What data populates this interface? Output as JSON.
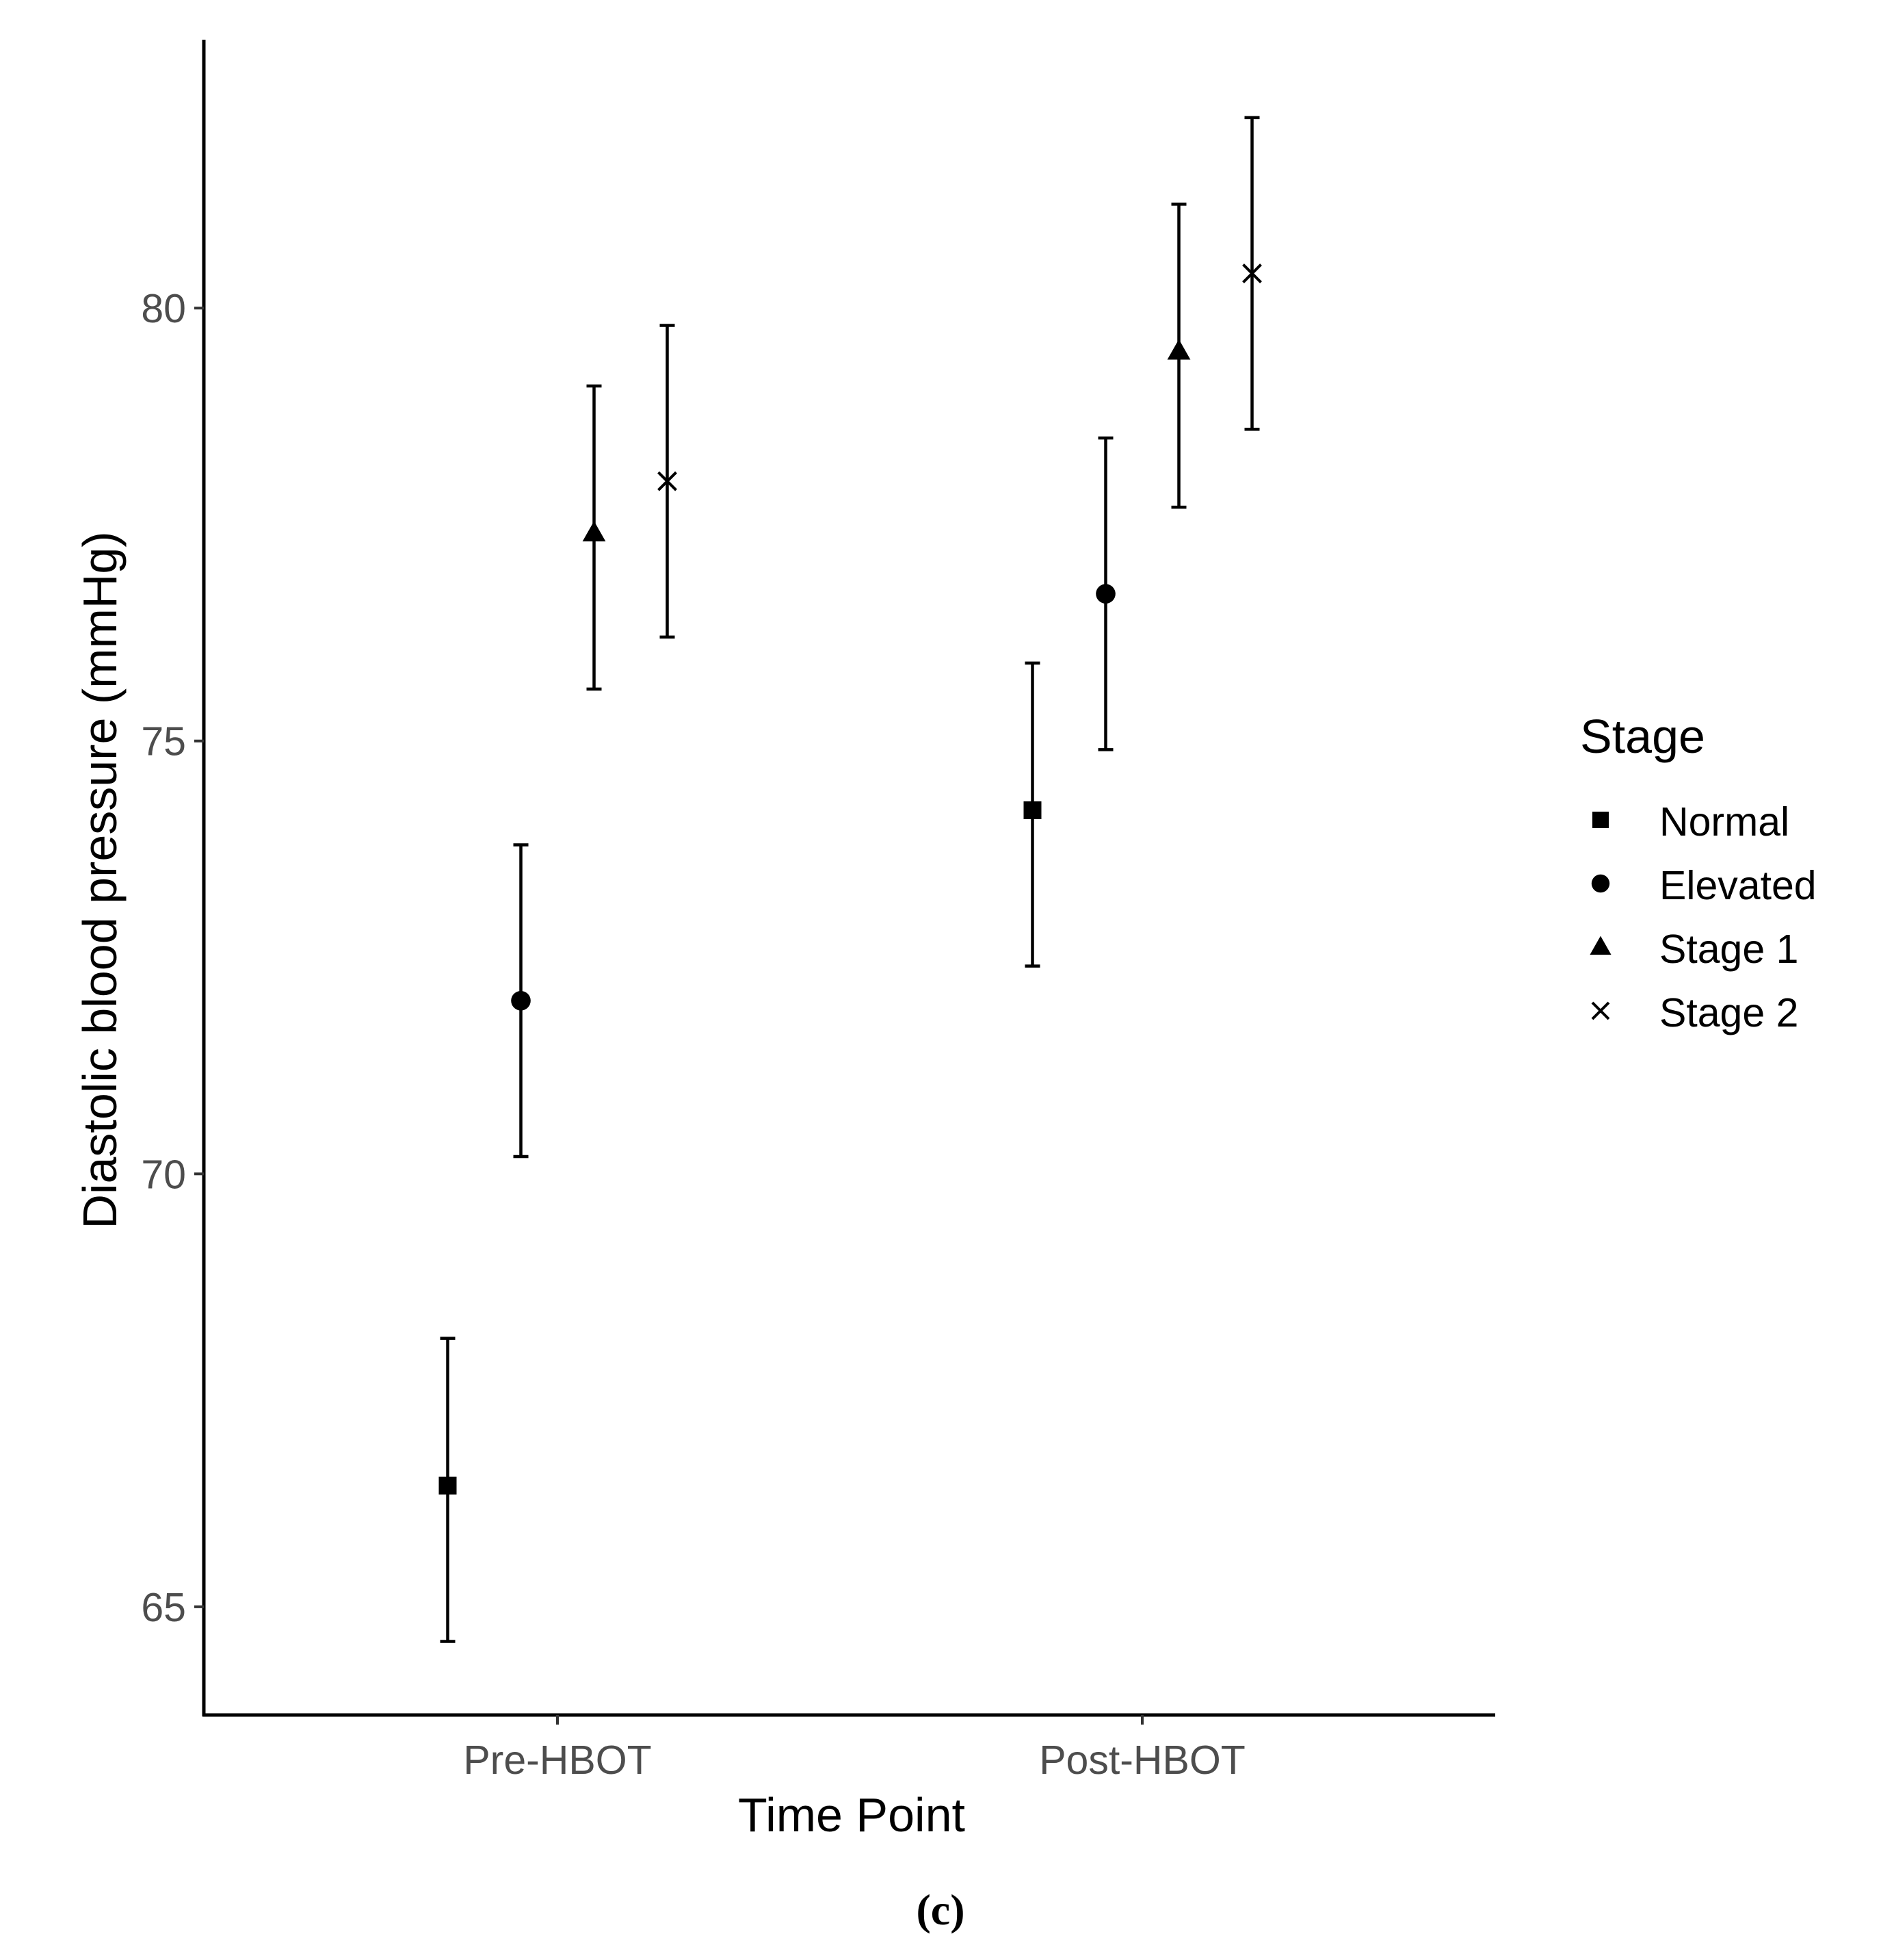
{
  "chart_data": {
    "type": "scatter",
    "subtype": "point-with-error-bars",
    "xlabel": "Time Point",
    "ylabel": "Diastolic blood pressure (mmHg)",
    "categories": [
      "Pre-HBOT",
      "Post-HBOT"
    ],
    "yticks": [
      65,
      70,
      75,
      80
    ],
    "ylim": [
      63.75,
      83.1
    ],
    "grid": false,
    "legend": {
      "title": "Stage",
      "position": "right"
    },
    "series": [
      {
        "name": "Normal",
        "marker": "square",
        "values": [
          66.4,
          74.2
        ],
        "lower": [
          64.6,
          72.4
        ],
        "upper": [
          68.1,
          75.9
        ]
      },
      {
        "name": "Elevated",
        "marker": "circle",
        "values": [
          72.0,
          76.7
        ],
        "lower": [
          70.2,
          74.9
        ],
        "upper": [
          73.8,
          78.5
        ]
      },
      {
        "name": "Stage 1",
        "marker": "triangle",
        "values": [
          77.4,
          79.5
        ],
        "lower": [
          75.6,
          77.7
        ],
        "upper": [
          79.1,
          81.2
        ]
      },
      {
        "name": "Stage 2",
        "marker": "cross",
        "values": [
          78.0,
          80.4
        ],
        "lower": [
          76.2,
          78.6
        ],
        "upper": [
          79.8,
          82.2
        ]
      }
    ],
    "caption": "(c)"
  }
}
